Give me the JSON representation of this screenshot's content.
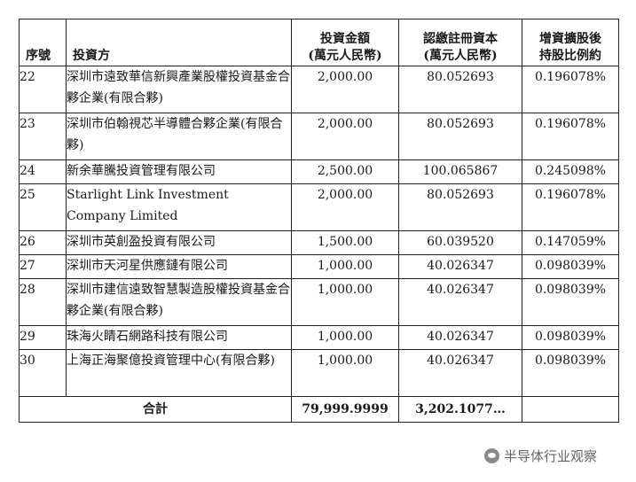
{
  "headers": {
    "no": "序號",
    "investor": "投資方",
    "amount_line1": "投資金額",
    "amount_line2": "(萬元人民幣)",
    "capital_line1": "認繳註冊資本",
    "capital_line2": "(萬元人民幣)",
    "ratio_line1": "增資擴股後",
    "ratio_line2": "持股比例約"
  },
  "rows": [
    {
      "no": "22",
      "investor": "深圳市遠致華信新興產業股權投資基金合夥企業(有限合夥)",
      "amount": "2,000.00",
      "capital": "80.052693",
      "ratio": "0.196078%"
    },
    {
      "no": "23",
      "investor": "深圳市伯翰視芯半導體合夥企業(有限合夥)",
      "amount": "2,000.00",
      "capital": "80.052693",
      "ratio": "0.196078%"
    },
    {
      "no": "24",
      "investor": "新余華騰投資管理有限公司",
      "amount": "2,500.00",
      "capital": "100.065867",
      "ratio": "0.245098%"
    },
    {
      "no": "25",
      "investor": "Starlight Link Investment Company Limited",
      "amount": "2,000.00",
      "capital": "80.052693",
      "ratio": "0.196078%"
    },
    {
      "no": "26",
      "investor": "深圳市英創盈投資有限公司",
      "amount": "1,500.00",
      "capital": "60.039520",
      "ratio": "0.147059%"
    },
    {
      "no": "27",
      "investor": "深圳市天河星供應鏈有限公司",
      "amount": "1,000.00",
      "capital": "40.026347",
      "ratio": "0.098039%"
    },
    {
      "no": "28",
      "investor": "深圳市建信遠致智慧製造股權投資基金合夥企業(有限合夥)",
      "amount": "1,000.00",
      "capital": "40.026347",
      "ratio": "0.098039%"
    },
    {
      "no": "29",
      "investor": "珠海火睛石網路科技有限公司",
      "amount": "1,000.00",
      "capital": "40.026347",
      "ratio": "0.098039%"
    },
    {
      "no": "30",
      "investor": "上海正海聚億投資管理中心(有限合夥)",
      "amount": "1,000.00",
      "capital": "40.026347",
      "ratio": "0.098039%"
    }
  ],
  "total": {
    "label": "合計",
    "amount": "79,999.9999",
    "capital": "3,202.1077…"
  },
  "watermark": {
    "text": "半导体行业观察",
    "icon": "wechat-logo-icon"
  }
}
